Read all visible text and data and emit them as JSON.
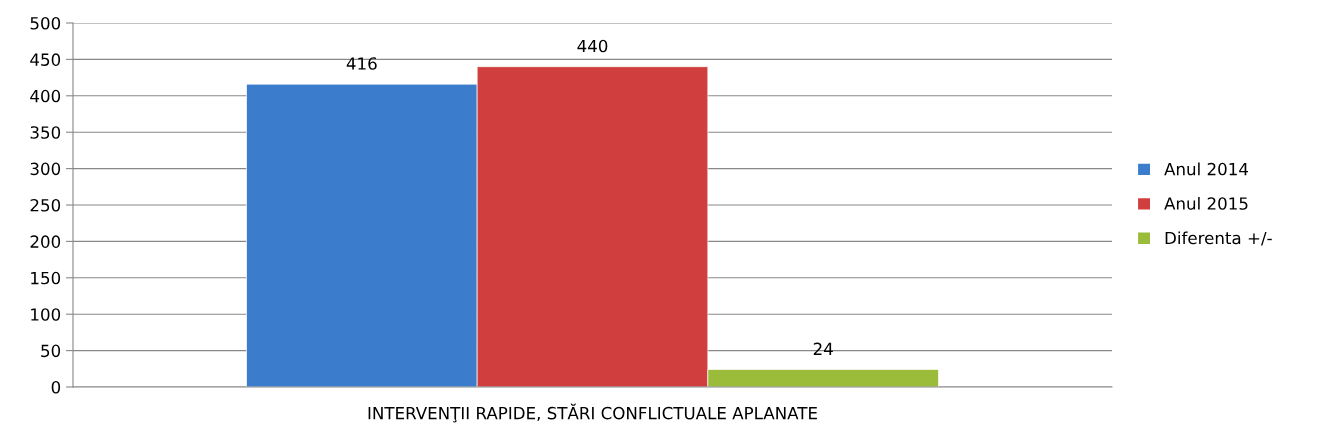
{
  "chart_data": {
    "type": "bar",
    "categories": [
      "INTERVENŢII RAPIDE, STĂRI CONFLICTUALE APLANATE"
    ],
    "series": [
      {
        "name": "Anul 2014",
        "color": "#3b7ccc",
        "values": [
          416
        ]
      },
      {
        "name": "Anul 2015",
        "color": "#d03f3d",
        "values": [
          440
        ]
      },
      {
        "name": "Diferenta +/-",
        "color": "#9bbb3b",
        "values": [
          24
        ]
      }
    ],
    "ylim": [
      0,
      500
    ],
    "yticks": [
      0,
      50,
      100,
      150,
      200,
      250,
      300,
      350,
      400,
      450,
      500
    ],
    "grid": "y",
    "legend": "right",
    "data_labels": true
  }
}
